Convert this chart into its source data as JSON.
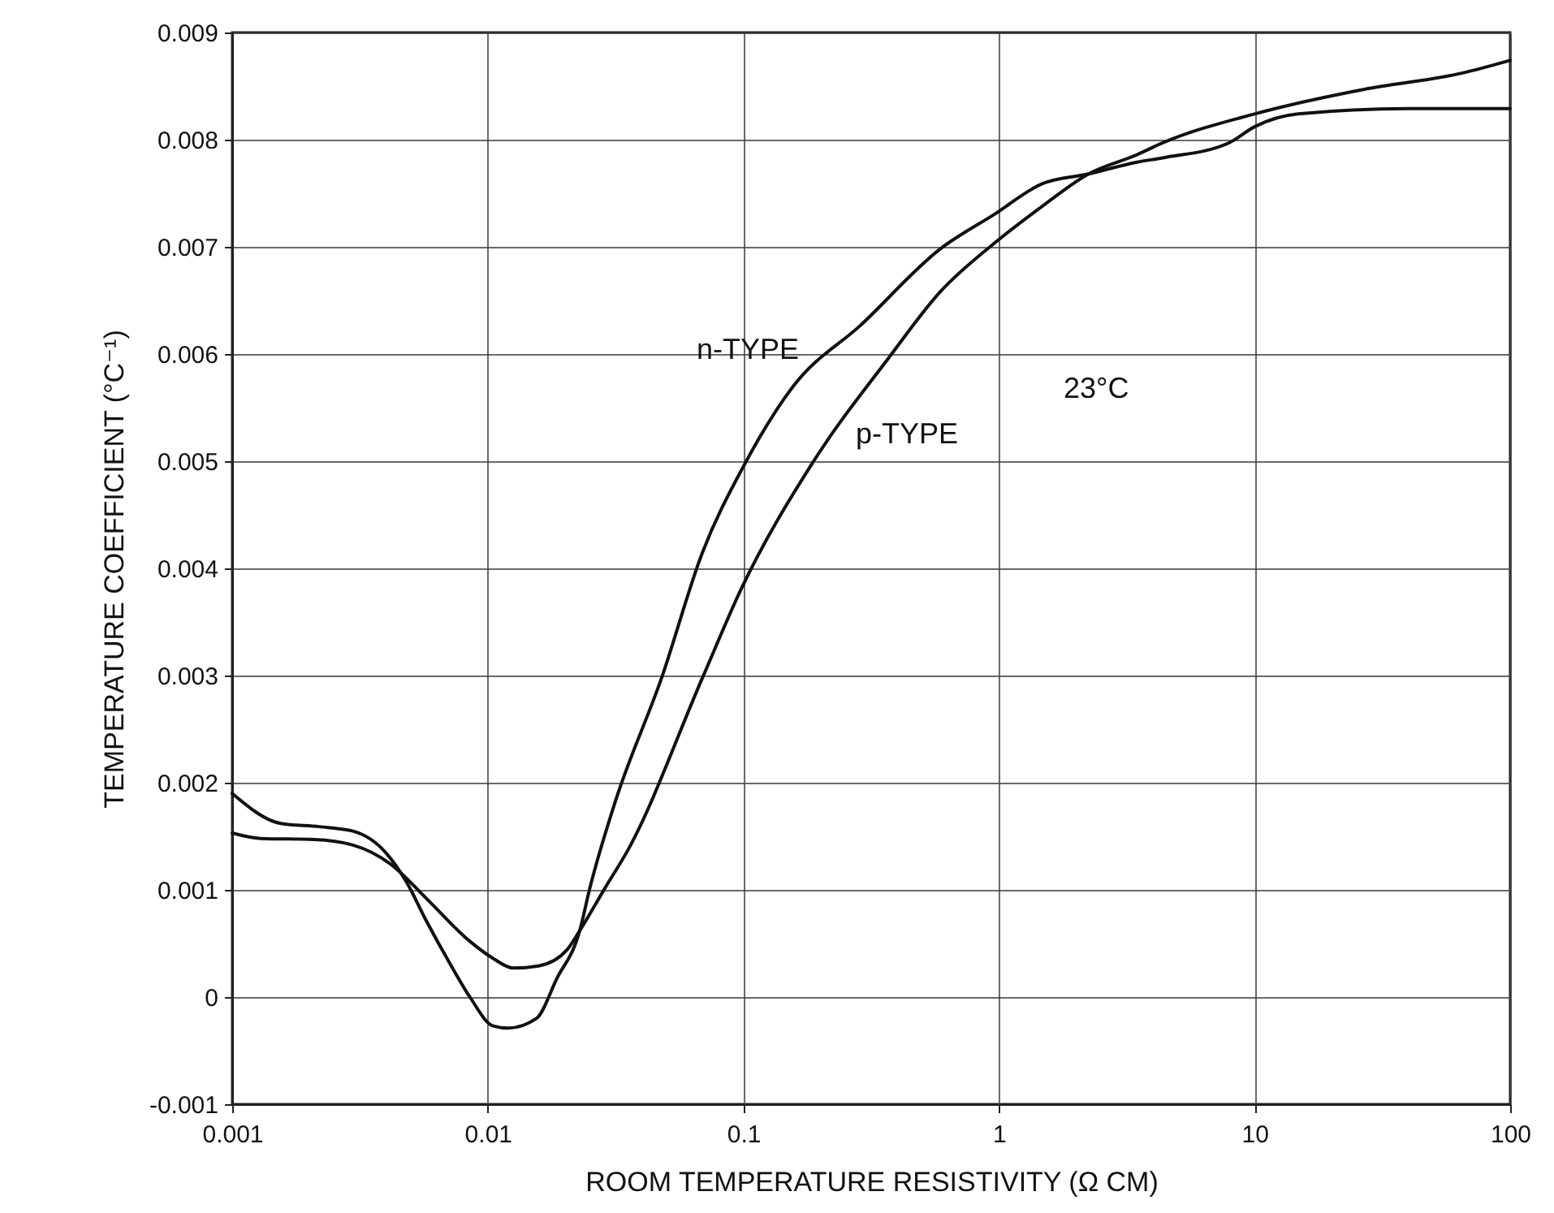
{
  "chart_data": {
    "type": "line",
    "xlabel": "ROOM TEMPERATURE RESISTIVITY (Ω CM)",
    "ylabel": "TEMPERATURE COEFFICIENT (°C⁻¹)",
    "annotations": [
      "23°C"
    ],
    "log": "x",
    "grid": true,
    "legend": false,
    "line_style": "solid",
    "marker": "none",
    "xlim": [
      0.001,
      100
    ],
    "xticks": [
      0.001,
      0.01,
      0.1,
      1,
      10,
      100
    ],
    "ylim": [
      -0.001,
      0.009
    ],
    "yticks": [
      -0.001,
      0,
      0.001,
      0.002,
      0.003,
      0.004,
      0.005,
      0.006,
      0.007,
      0.008,
      0.009
    ],
    "series": [
      {
        "name": "n-TYPE",
        "color": "#111111",
        "x": [
          0.001,
          0.00155,
          0.00219,
          0.00295,
          0.00398,
          0.00479,
          0.00575,
          0.00708,
          0.00851,
          0.0105,
          0.012,
          0.0155,
          0.0186,
          0.0229,
          0.0251,
          0.0316,
          0.0479,
          0.0692,
          0.1,
          0.158,
          0.288,
          0.589,
          0.955,
          1.48,
          2.24,
          3.47,
          4.37,
          7.94,
          10,
          14.8,
          39.8,
          100
        ],
        "values": [
          0.0019,
          0.00162,
          0.00159,
          0.00155,
          0.00135,
          0.00108,
          0.00071,
          0.00032,
          0,
          -0.00027,
          -0.00029,
          -0.0002,
          0.00017,
          0.00062,
          0.00102,
          0.00183,
          0.00298,
          0.00415,
          0.00495,
          0.00571,
          0.00627,
          0.00698,
          0.0073,
          0.00759,
          0.00768,
          0.00779,
          0.00783,
          0.00797,
          0.00812,
          0.00824,
          0.00829,
          0.00829
        ]
      },
      {
        "name": "p-TYPE",
        "color": "#111111",
        "x": [
          0.001,
          0.00129,
          0.00209,
          0.00295,
          0.00417,
          0.00575,
          0.00851,
          0.0105,
          0.0126,
          0.0158,
          0.0204,
          0.0229,
          0.0288,
          0.0355,
          0.0692,
          0.0977,
          0.186,
          0.372,
          0.589,
          0.955,
          1.48,
          2.24,
          3.47,
          4.37,
          10,
          26.9,
          64.6,
          100
        ],
        "values": [
          0.00153,
          0.00148,
          0.00147,
          0.00142,
          0.00124,
          0.00092,
          0.00052,
          0.00036,
          0.00027,
          0.00029,
          0.00044,
          0.00062,
          0.00102,
          0.00138,
          0.00298,
          0.0038,
          0.00498,
          0.00597,
          0.00658,
          0.00703,
          0.00738,
          0.00768,
          0.00786,
          0.00797,
          0.00824,
          0.00847,
          0.00862,
          0.00874
        ]
      }
    ]
  }
}
